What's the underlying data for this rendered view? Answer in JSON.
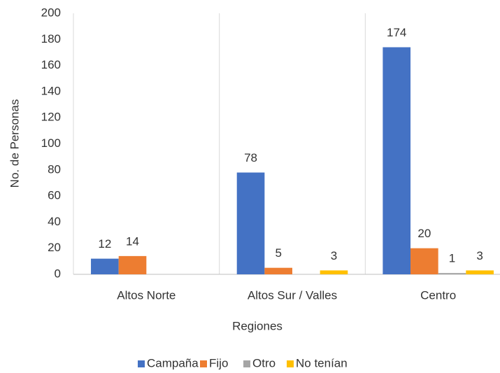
{
  "chart_data": {
    "type": "bar",
    "x_label": "Regiones",
    "y_label": "No. de Personas",
    "categories": [
      "Altos Norte",
      "Altos Sur / Valles",
      "Centro"
    ],
    "series": [
      {
        "name": "Campaña",
        "color": "#4472c4",
        "values": [
          12,
          78,
          174
        ]
      },
      {
        "name": "Fijo",
        "color": "#ed7d31",
        "values": [
          14,
          5,
          20
        ]
      },
      {
        "name": "Otro",
        "color": "#a5a5a5",
        "values": [
          null,
          null,
          1
        ]
      },
      {
        "name": "No tenían",
        "color": "#ffc000",
        "values": [
          null,
          3,
          3
        ]
      }
    ],
    "ylim": [
      0,
      200
    ],
    "yticks": [
      0,
      20,
      40,
      60,
      80,
      100,
      120,
      140,
      160,
      180,
      200
    ],
    "legend": "bottom"
  }
}
